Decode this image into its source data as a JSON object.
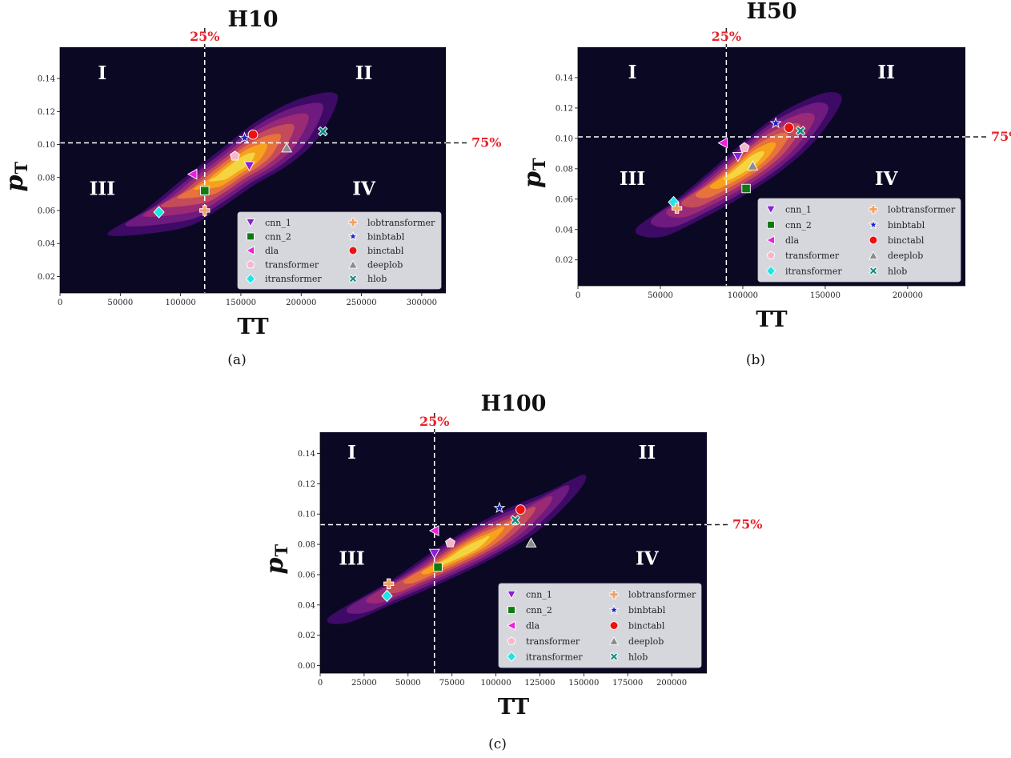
{
  "colors": {
    "background": "#0b0824",
    "threshold_label": "#e8232a",
    "kde": [
      "#3d0a65",
      "#6e1a7e",
      "#9a2a74",
      "#c44b5b",
      "#e8723c",
      "#f7a21c",
      "#f5d442"
    ]
  },
  "marker_styles": {
    "cnn_1": {
      "shape": "triangle-down",
      "color": "#8a1fd6"
    },
    "cnn_2": {
      "shape": "square",
      "color": "#0f7a12"
    },
    "dla": {
      "shape": "triangle-left",
      "color": "#ee1de0"
    },
    "transformer": {
      "shape": "pentagon",
      "color": "#f6b6cc"
    },
    "itransformer": {
      "shape": "diamond",
      "color": "#1ee6e6"
    },
    "lobtransformer": {
      "shape": "plus",
      "color": "#f5a060"
    },
    "binbtabl": {
      "shape": "star",
      "color": "#1a22c8"
    },
    "binctabl": {
      "shape": "circle",
      "color": "#ee1111"
    },
    "deeplob": {
      "shape": "triangle-up",
      "color": "#8c8c8c"
    },
    "hlob": {
      "shape": "x",
      "color": "#138a80"
    }
  },
  "chart_data": [
    {
      "type": "scatter",
      "title": "H10",
      "xlabel": "TT",
      "ylabel": "p",
      "ylabel_sub": "T",
      "caption": "(a)",
      "xlim": [
        0,
        320000
      ],
      "ylim": [
        0.01,
        0.159
      ],
      "xticks": [
        0,
        50000,
        100000,
        150000,
        200000,
        250000,
        300000
      ],
      "yticks": [
        0.02,
        0.04,
        0.06,
        0.08,
        0.1,
        0.12,
        0.14
      ],
      "ytick_digits": 2,
      "vline": {
        "x": 120000,
        "label": "25%"
      },
      "hline": {
        "y": 0.101,
        "label": "75%"
      },
      "quadrants": [
        "I",
        "II",
        "III",
        "IV"
      ],
      "quadrant_positions": [
        [
          35000,
          0.1395
        ],
        [
          252000,
          0.1395
        ],
        [
          35000,
          0.0695
        ],
        [
          252000,
          0.0695
        ]
      ],
      "legend_location": "lower right",
      "density_path": [
        [
          40000,
          0.045
        ],
        [
          70000,
          0.06
        ],
        [
          100000,
          0.078
        ],
        [
          135000,
          0.098
        ],
        [
          165000,
          0.115
        ],
        [
          200000,
          0.128
        ],
        [
          230000,
          0.13
        ],
        [
          215000,
          0.105
        ],
        [
          190000,
          0.088
        ],
        [
          160000,
          0.075
        ],
        [
          130000,
          0.06
        ],
        [
          100000,
          0.049
        ]
      ],
      "points": [
        {
          "name": "cnn_1",
          "x": 157000,
          "y": 0.087
        },
        {
          "name": "cnn_2",
          "x": 120000,
          "y": 0.072
        },
        {
          "name": "dla",
          "x": 110000,
          "y": 0.082
        },
        {
          "name": "transformer",
          "x": 145000,
          "y": 0.093
        },
        {
          "name": "itransformer",
          "x": 82000,
          "y": 0.059
        },
        {
          "name": "lobtransformer",
          "x": 120000,
          "y": 0.06
        },
        {
          "name": "binbtabl",
          "x": 153000,
          "y": 0.104
        },
        {
          "name": "binctabl",
          "x": 160000,
          "y": 0.106
        },
        {
          "name": "deeplob",
          "x": 188000,
          "y": 0.098
        },
        {
          "name": "hlob",
          "x": 218000,
          "y": 0.108
        }
      ]
    },
    {
      "type": "scatter",
      "title": "H50",
      "xlabel": "TT",
      "ylabel": "p",
      "ylabel_sub": "T",
      "caption": "(b)",
      "xlim": [
        0,
        235000
      ],
      "ylim": [
        0.003,
        0.16
      ],
      "xticks": [
        0,
        50000,
        100000,
        150000,
        200000
      ],
      "yticks": [
        0.02,
        0.04,
        0.06,
        0.08,
        0.1,
        0.12,
        0.14
      ],
      "ytick_digits": 2,
      "vline": {
        "x": 90000,
        "label": "25%"
      },
      "hline": {
        "y": 0.101,
        "label": "75%"
      },
      "quadrants": [
        "I",
        "II",
        "III",
        "IV"
      ],
      "quadrant_positions": [
        [
          33000,
          0.1395
        ],
        [
          187000,
          0.1395
        ],
        [
          33000,
          0.0695
        ],
        [
          187000,
          0.0695
        ]
      ],
      "legend_location": "lower right",
      "density_path": [
        [
          35000,
          0.04
        ],
        [
          60000,
          0.06
        ],
        [
          85000,
          0.083
        ],
        [
          105000,
          0.102
        ],
        [
          125000,
          0.118
        ],
        [
          150000,
          0.13
        ],
        [
          160000,
          0.125
        ],
        [
          145000,
          0.1
        ],
        [
          125000,
          0.08
        ],
        [
          100000,
          0.062
        ],
        [
          75000,
          0.047
        ],
        [
          50000,
          0.035
        ]
      ],
      "points": [
        {
          "name": "cnn_1",
          "x": 97000,
          "y": 0.088
        },
        {
          "name": "cnn_2",
          "x": 102000,
          "y": 0.067
        },
        {
          "name": "dla",
          "x": 88000,
          "y": 0.097
        },
        {
          "name": "transformer",
          "x": 101000,
          "y": 0.094
        },
        {
          "name": "itransformer",
          "x": 58000,
          "y": 0.058
        },
        {
          "name": "lobtransformer",
          "x": 60000,
          "y": 0.054
        },
        {
          "name": "binbtabl",
          "x": 120000,
          "y": 0.11
        },
        {
          "name": "binctabl",
          "x": 128000,
          "y": 0.107
        },
        {
          "name": "deeplob",
          "x": 106000,
          "y": 0.082
        },
        {
          "name": "hlob",
          "x": 135000,
          "y": 0.105
        }
      ]
    },
    {
      "type": "scatter",
      "title": "H100",
      "xlabel": "TT",
      "ylabel": "p",
      "ylabel_sub": "T",
      "caption": "(c)",
      "xlim": [
        0,
        220000
      ],
      "ylim": [
        -0.005,
        0.154
      ],
      "xticks": [
        0,
        25000,
        50000,
        75000,
        100000,
        125000,
        150000,
        175000,
        200000
      ],
      "yticks": [
        0.0,
        0.02,
        0.04,
        0.06,
        0.08,
        0.1,
        0.12,
        0.14
      ],
      "ytick_digits": 2,
      "vline": {
        "x": 65000,
        "label": "25%"
      },
      "hline": {
        "y": 0.093,
        "label": "75%"
      },
      "quadrants": [
        "I",
        "II",
        "III",
        "IV"
      ],
      "quadrant_positions": [
        [
          18000,
          0.1365
        ],
        [
          186000,
          0.1365
        ],
        [
          18000,
          0.0665
        ],
        [
          186000,
          0.0665
        ]
      ],
      "legend_location": "lower right",
      "density_path": [
        [
          5000,
          0.032
        ],
        [
          40000,
          0.056
        ],
        [
          70000,
          0.08
        ],
        [
          100000,
          0.1
        ],
        [
          130000,
          0.115
        ],
        [
          150000,
          0.126
        ],
        [
          147000,
          0.115
        ],
        [
          125000,
          0.09
        ],
        [
          100000,
          0.072
        ],
        [
          70000,
          0.055
        ],
        [
          40000,
          0.04
        ],
        [
          15000,
          0.028
        ]
      ],
      "points": [
        {
          "name": "cnn_1",
          "x": 65000,
          "y": 0.074
        },
        {
          "name": "cnn_2",
          "x": 67000,
          "y": 0.065
        },
        {
          "name": "dla",
          "x": 65000,
          "y": 0.089
        },
        {
          "name": "transformer",
          "x": 74000,
          "y": 0.081
        },
        {
          "name": "itransformer",
          "x": 38000,
          "y": 0.046
        },
        {
          "name": "lobtransformer",
          "x": 39000,
          "y": 0.054
        },
        {
          "name": "binbtabl",
          "x": 102000,
          "y": 0.104
        },
        {
          "name": "binctabl",
          "x": 114000,
          "y": 0.103
        },
        {
          "name": "deeplob",
          "x": 120000,
          "y": 0.081
        },
        {
          "name": "hlob",
          "x": 111000,
          "y": 0.096
        }
      ]
    }
  ]
}
